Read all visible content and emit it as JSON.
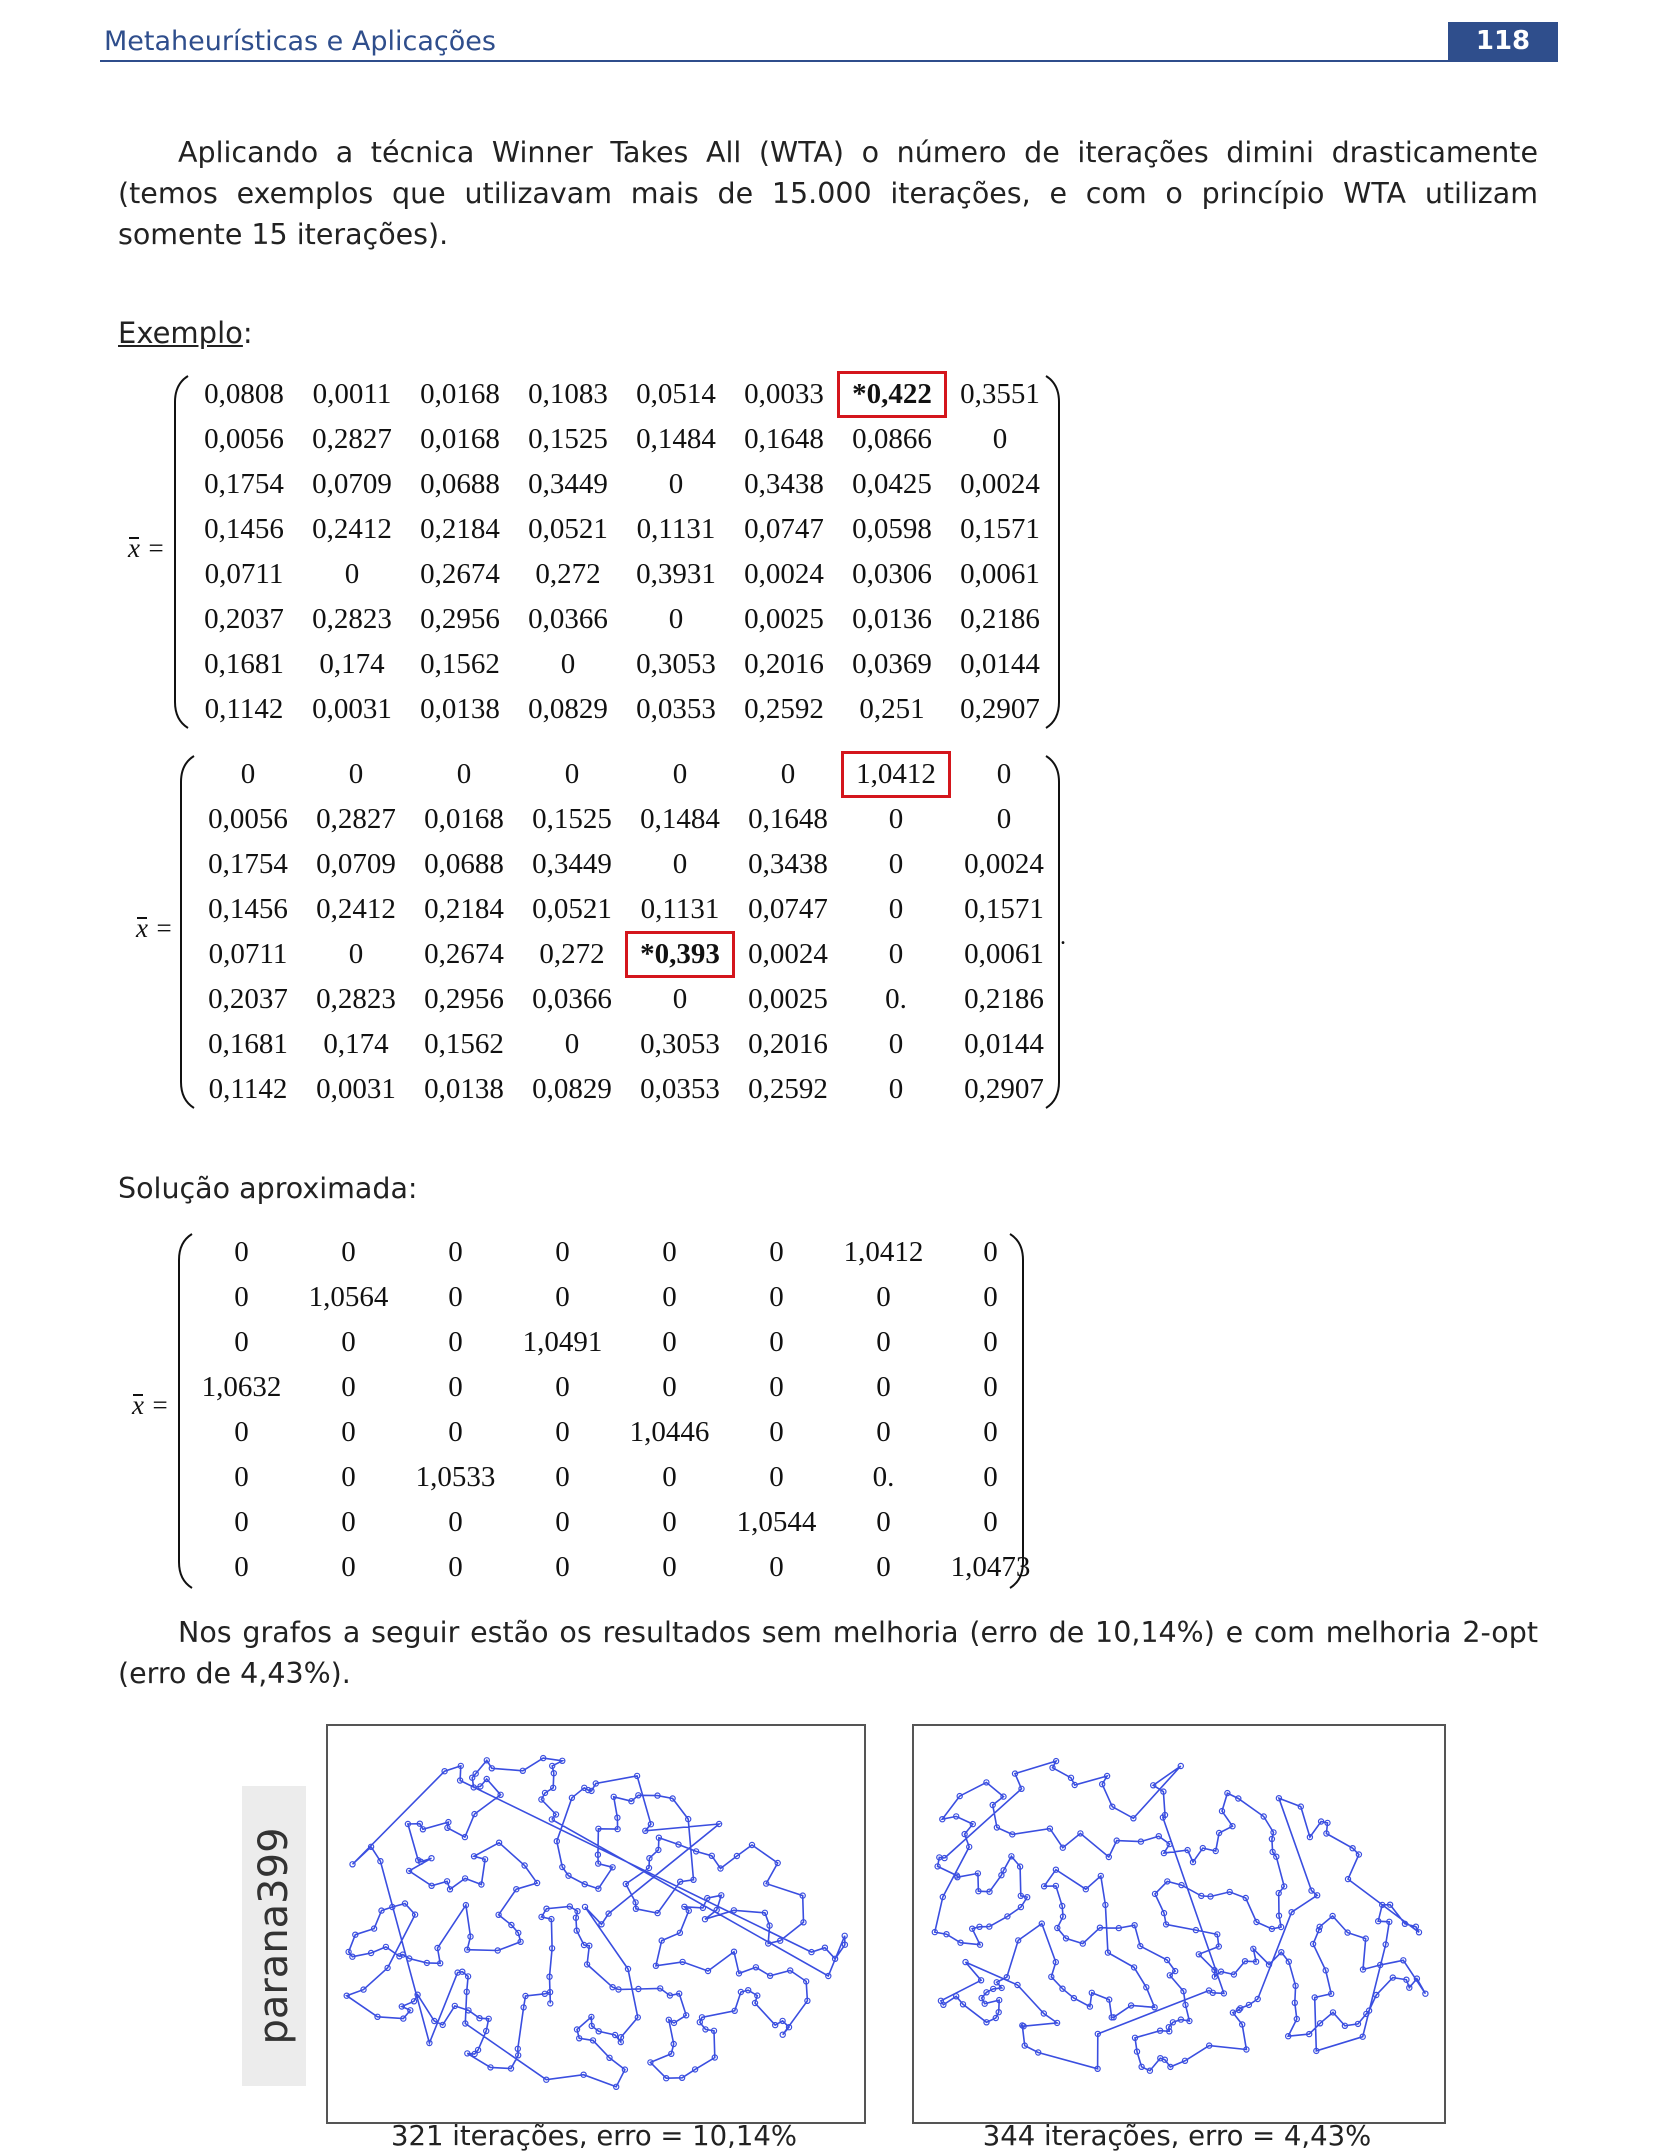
{
  "header": {
    "title": "Metaheurísticas e Aplicações",
    "page_number": "118"
  },
  "paragraph_1": "Aplicando a técnica Winner Takes All (WTA) o número de iterações dimini drasticamente (temos exemplos que utilizavam mais de 15.000 iterações, e com o princípio WTA utilizam somente 15 iterações).",
  "example_heading": "Exemplo",
  "example_colon": ":",
  "matrix_label": "x",
  "matrix_eq": "=",
  "matrix_1": [
    [
      "0,0808",
      "0,0011",
      "0,0168",
      "0,1083",
      "0,0514",
      "0,0033",
      "*0,422",
      "0,3551"
    ],
    [
      "0,0056",
      "0,2827",
      "0,0168",
      "0,1525",
      "0,1484",
      "0,1648",
      "0,0866",
      "0"
    ],
    [
      "0,1754",
      "0,0709",
      "0,0688",
      "0,3449",
      "0",
      "0,3438",
      "0,0425",
      "0,0024"
    ],
    [
      "0,1456",
      "0,2412",
      "0,2184",
      "0,0521",
      "0,1131",
      "0,0747",
      "0,0598",
      "0,1571"
    ],
    [
      "0,0711",
      "0",
      "0,2674",
      "0,272",
      "0,3931",
      "0,0024",
      "0,0306",
      "0,0061"
    ],
    [
      "0,2037",
      "0,2823",
      "0,2956",
      "0,0366",
      "0",
      "0,0025",
      "0,0136",
      "0,2186"
    ],
    [
      "0,1681",
      "0,174",
      "0,1562",
      "0",
      "0,3053",
      "0,2016",
      "0,0369",
      "0,0144"
    ],
    [
      "0,1142",
      "0,0031",
      "0,0138",
      "0,0829",
      "0,0353",
      "0,2592",
      "0,251",
      "0,2907"
    ]
  ],
  "matrix_2": [
    [
      "0",
      "0",
      "0",
      "0",
      "0",
      "0",
      "1,0412",
      "0"
    ],
    [
      "0,0056",
      "0,2827",
      "0,0168",
      "0,1525",
      "0,1484",
      "0,1648",
      "0",
      "0"
    ],
    [
      "0,1754",
      "0,0709",
      "0,0688",
      "0,3449",
      "0",
      "0,3438",
      "0",
      "0,0024"
    ],
    [
      "0,1456",
      "0,2412",
      "0,2184",
      "0,0521",
      "0,1131",
      "0,0747",
      "0",
      "0,1571"
    ],
    [
      "0,0711",
      "0",
      "0,2674",
      "0,272",
      "*0,393",
      "0,0024",
      "0",
      "0,0061"
    ],
    [
      "0,2037",
      "0,2823",
      "0,2956",
      "0,0366",
      "0",
      "0,0025",
      "0.",
      "0,2186"
    ],
    [
      "0,1681",
      "0,174",
      "0,1562",
      "0",
      "0,3053",
      "0,2016",
      "0",
      "0,0144"
    ],
    [
      "0,1142",
      "0,0031",
      "0,0138",
      "0,0829",
      "0,0353",
      "0,2592",
      "0",
      "0,2907"
    ]
  ],
  "matrix_2_trailing": ".",
  "solution_heading": "Solução aproximada:",
  "matrix_3": [
    [
      "0",
      "0",
      "0",
      "0",
      "0",
      "0",
      "1,0412",
      "0"
    ],
    [
      "0",
      "1,0564",
      "0",
      "0",
      "0",
      "0",
      "0",
      "0"
    ],
    [
      "0",
      "0",
      "0",
      "1,0491",
      "0",
      "0",
      "0",
      "0"
    ],
    [
      "1,0632",
      "0",
      "0",
      "0",
      "0",
      "0",
      "0",
      "0"
    ],
    [
      "0",
      "0",
      "0",
      "0",
      "1,0446",
      "0",
      "0",
      "0"
    ],
    [
      "0",
      "0",
      "1,0533",
      "0",
      "0",
      "0",
      "0.",
      "0"
    ],
    [
      "0",
      "0",
      "0",
      "0",
      "0",
      "1,0544",
      "0",
      "0"
    ],
    [
      "0",
      "0",
      "0",
      "0",
      "0",
      "0",
      "0",
      "1,0473"
    ]
  ],
  "paragraph_2": "Nos grafos a seguir estão os resultados sem melhoria (erro de 10,14%) e com melhoria 2-opt (erro de 4,43%).",
  "figure": {
    "side_label": "parana399",
    "caption_left": "321 iterações, erro = 10,14%",
    "caption_right": "344 iterações, erro = 4,43%",
    "route_color": "#3a4ee0"
  }
}
